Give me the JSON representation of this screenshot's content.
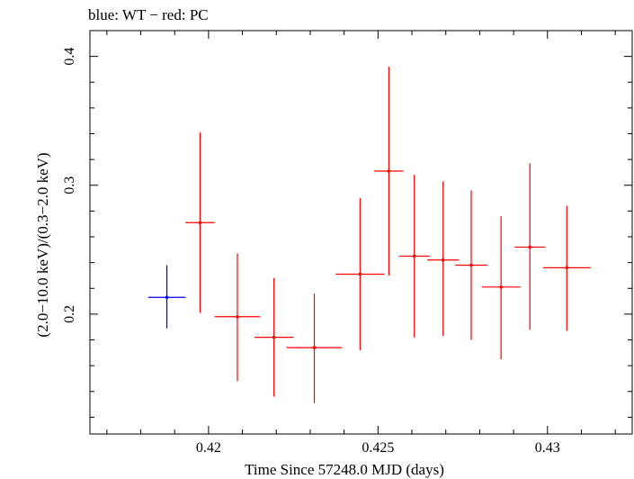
{
  "chart_data": {
    "type": "scatter",
    "title": "blue: WT − red: PC",
    "xlabel": "Time Since 57248.0 MJD (days)",
    "ylabel": "(2.0−10.0 keV)/(0.3−2.0 keV)",
    "xlim": [
      0.4165,
      0.4325
    ],
    "ylim": [
      0.107,
      0.42
    ],
    "x_ticks": [
      {
        "value": 0.42,
        "label": "0.42"
      },
      {
        "value": 0.425,
        "label": "0.425"
      },
      {
        "value": 0.43,
        "label": "0.43"
      }
    ],
    "y_ticks": [
      {
        "value": 0.2,
        "label": "0.2"
      },
      {
        "value": 0.3,
        "label": "0.3"
      },
      {
        "value": 0.4,
        "label": "0.4"
      }
    ],
    "series": [
      {
        "name": "WT",
        "color": "#0000ff",
        "points": [
          {
            "x": 0.41877,
            "xerr": 0.00055,
            "y": 0.213,
            "ylo": 0.189,
            "yhi": 0.238
          }
        ]
      },
      {
        "name": "PC",
        "color": "#ff0000",
        "points": [
          {
            "x": 0.41975,
            "xerr": 0.00043,
            "y": 0.271,
            "ylo": 0.201,
            "yhi": 0.341
          },
          {
            "x": 0.42085,
            "xerr": 0.00067,
            "y": 0.198,
            "ylo": 0.148,
            "yhi": 0.247
          },
          {
            "x": 0.42193,
            "xerr": 0.00057,
            "y": 0.182,
            "ylo": 0.136,
            "yhi": 0.228
          },
          {
            "x": 0.42312,
            "xerr": 0.00082,
            "y": 0.174,
            "ylo": 0.131,
            "yhi": 0.216
          },
          {
            "x": 0.42447,
            "xerr": 0.00072,
            "y": 0.231,
            "ylo": 0.172,
            "yhi": 0.29
          },
          {
            "x": 0.42532,
            "xerr": 0.00043,
            "y": 0.311,
            "ylo": 0.23,
            "yhi": 0.392
          },
          {
            "x": 0.42607,
            "xerr": 0.00045,
            "y": 0.245,
            "ylo": 0.182,
            "yhi": 0.308
          },
          {
            "x": 0.42692,
            "xerr": 0.00047,
            "y": 0.242,
            "ylo": 0.183,
            "yhi": 0.303
          },
          {
            "x": 0.42775,
            "xerr": 0.00047,
            "y": 0.238,
            "ylo": 0.18,
            "yhi": 0.296
          },
          {
            "x": 0.42863,
            "xerr": 0.00057,
            "y": 0.221,
            "ylo": 0.165,
            "yhi": 0.276
          },
          {
            "x": 0.42948,
            "xerr": 0.00045,
            "y": 0.252,
            "ylo": 0.188,
            "yhi": 0.317
          },
          {
            "x": 0.43057,
            "xerr": 0.0007,
            "y": 0.236,
            "ylo": 0.187,
            "yhi": 0.284
          }
        ]
      }
    ],
    "grid": false,
    "legend": "none"
  }
}
